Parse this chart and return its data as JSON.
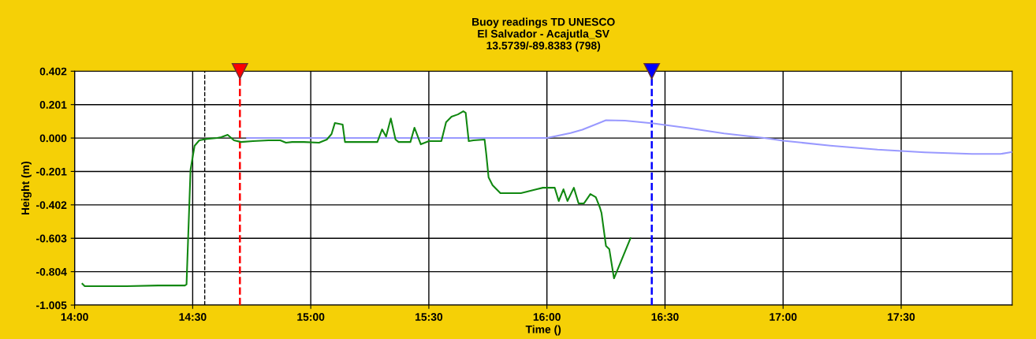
{
  "chart_data": {
    "type": "line",
    "title": "Buoy readings TD UNESCO\nEl Salvador - Acajutla_SV\n13.5739/-89.8383 (798)",
    "xlabel": "Time ()",
    "ylabel": "Height (m)",
    "xlim": [
      14,
      17.97
    ],
    "ylim": [
      -1.005,
      0.402
    ],
    "xticks": [
      {
        "value": 14,
        "label": "14:00"
      },
      {
        "value": 14.5,
        "label": "14:30"
      },
      {
        "value": 15,
        "label": "15:00"
      },
      {
        "value": 15.5,
        "label": "15:30"
      },
      {
        "value": 16,
        "label": "16:00"
      },
      {
        "value": 16.5,
        "label": "16:30"
      },
      {
        "value": 17,
        "label": "17:00"
      },
      {
        "value": 17.5,
        "label": "17:30"
      }
    ],
    "yticks": [
      {
        "value": 0.402,
        "label": "0.402"
      },
      {
        "value": 0.201,
        "label": "0.201"
      },
      {
        "value": 0,
        "label": "0.000"
      },
      {
        "value": -0.201,
        "label": "-0.201"
      },
      {
        "value": -0.402,
        "label": "-0.402"
      },
      {
        "value": -0.603,
        "label": "-0.603"
      },
      {
        "value": -0.804,
        "label": "-0.804"
      },
      {
        "value": -1.005,
        "label": "-1.005"
      }
    ],
    "grid": true,
    "legend": false,
    "marker": "none",
    "line_style": "solid",
    "series": [
      {
        "color": "#9999ff",
        "x": [
          14.73,
          15.915,
          16.0,
          16.1,
          16.15,
          16.25,
          16.33,
          16.45,
          16.6,
          16.75,
          16.92,
          17.0,
          17.2,
          17.4,
          17.6,
          17.8,
          17.92,
          17.97
        ],
        "values": [
          0,
          0,
          0,
          0.03,
          0.05,
          0.107,
          0.105,
          0.088,
          0.06,
          0.028,
          0,
          -0.016,
          -0.046,
          -0.07,
          -0.086,
          -0.096,
          -0.096,
          -0.084
        ]
      },
      {
        "color": "#118811",
        "x": [
          14.033,
          14.043,
          14.22,
          14.354,
          14.467,
          14.474,
          14.481,
          14.491,
          14.508,
          14.528,
          14.561,
          14.604,
          14.621,
          14.648,
          14.675,
          14.705,
          14.755,
          14.821,
          14.871,
          14.895,
          14.921,
          14.971,
          15.035,
          15.068,
          15.088,
          15.102,
          15.135,
          15.145,
          15.205,
          15.282,
          15.302,
          15.319,
          15.339,
          15.359,
          15.372,
          15.422,
          15.439,
          15.466,
          15.5,
          15.553,
          15.573,
          15.596,
          15.623,
          15.646,
          15.656,
          15.669,
          15.689,
          15.736,
          15.743,
          15.753,
          15.77,
          15.803,
          15.89,
          15.957,
          15.983,
          16.0,
          16.033,
          16.05,
          16.07,
          16.087,
          16.114,
          16.134,
          16.157,
          16.184,
          16.207,
          16.224,
          16.231,
          16.25,
          16.264,
          16.284,
          16.354
        ],
        "values": [
          -0.877,
          -0.891,
          -0.891,
          -0.887,
          -0.887,
          -0.88,
          -0.593,
          -0.19,
          -0.047,
          -0.014,
          -0.005,
          0.0,
          0.005,
          0.019,
          -0.014,
          -0.024,
          -0.019,
          -0.014,
          -0.014,
          -0.028,
          -0.024,
          -0.024,
          -0.028,
          -0.009,
          0.024,
          0.09,
          0.081,
          -0.024,
          -0.024,
          -0.024,
          0.052,
          0.009,
          0.118,
          -0.009,
          -0.024,
          -0.024,
          0.062,
          -0.038,
          -0.019,
          -0.019,
          0.095,
          0.128,
          0.142,
          0.161,
          0.152,
          -0.019,
          -0.014,
          -0.009,
          -0.095,
          -0.237,
          -0.284,
          -0.332,
          -0.332,
          -0.308,
          -0.299,
          -0.299,
          -0.299,
          -0.379,
          -0.308,
          -0.379,
          -0.299,
          -0.393,
          -0.393,
          -0.337,
          -0.356,
          -0.417,
          -0.45,
          -0.649,
          -0.668,
          -0.844,
          -0.602
        ]
      }
    ],
    "ref_lines": [
      {
        "axis": "x",
        "value": 14.551,
        "color": "#000000",
        "line_style": "dashed"
      },
      {
        "axis": "x",
        "value": 14.7,
        "color": "#ff0000",
        "line_style": "dashed"
      },
      {
        "axis": "x",
        "value": 16.444,
        "color": "#0000ff",
        "line_style": "dashed"
      }
    ]
  }
}
